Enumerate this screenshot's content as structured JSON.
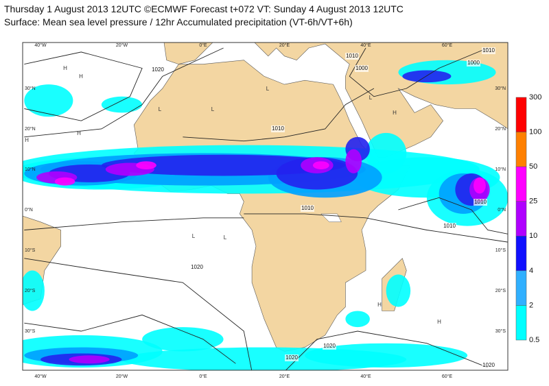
{
  "header": {
    "line1": "Thursday 1 August 2013 12UTC ©ECMWF Forecast t+072 VT: Sunday 4 August 2013 12UTC",
    "line2": "Surface: Mean sea level pressure / 12hr Accumulated precipitation (VT-6h/VT+6h)"
  },
  "map": {
    "lon_labels": [
      "40°W",
      "20°W",
      "0°E",
      "20°E",
      "40°E",
      "60°E"
    ],
    "lat_labels": [
      "30°N",
      "20°N",
      "10°N",
      "0°N",
      "10°S",
      "20°S",
      "30°S"
    ],
    "pressure_labels": [
      1020,
      1010,
      1000,
      1010,
      1000,
      1010,
      1010,
      1010,
      1010,
      1020,
      1020,
      1020,
      1020
    ],
    "centers": [
      "H",
      "H",
      "L",
      "L",
      "L",
      "L",
      "H",
      "H",
      "H",
      "L",
      "L",
      "H",
      "H"
    ]
  },
  "legend": {
    "labels": [
      300,
      100,
      50,
      25,
      10,
      4,
      2,
      0.5
    ]
  }
}
